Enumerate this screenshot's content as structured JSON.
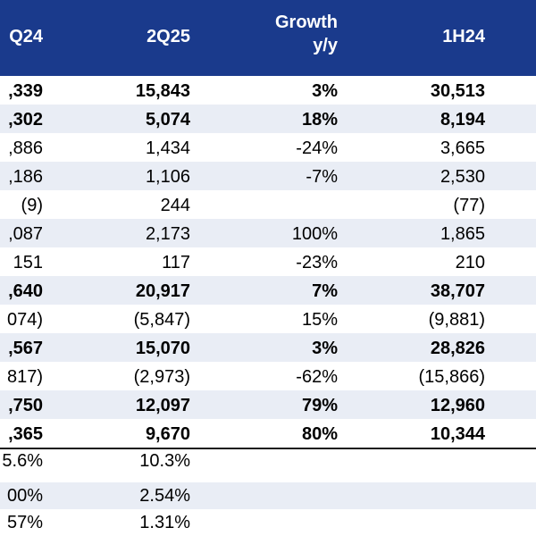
{
  "header": {
    "col1": "Q24",
    "col2": "2Q25",
    "col3_line1": "Growth",
    "col3_line2": "y/y",
    "col4": "1H24"
  },
  "rows": [
    {
      "c1": ",339",
      "c2": "15,843",
      "c3": "3%",
      "c4": "30,513",
      "bold": true
    },
    {
      "c1": ",302",
      "c2": "5,074",
      "c3": "18%",
      "c4": "8,194",
      "bold": true
    },
    {
      "c1": ",886",
      "c2": "1,434",
      "c3": "-24%",
      "c4": "3,665",
      "bold": false
    },
    {
      "c1": ",186",
      "c2": "1,106",
      "c3": "-7%",
      "c4": "2,530",
      "bold": false
    },
    {
      "c1": "(9)",
      "c2": "244",
      "c3": "",
      "c4": "(77)",
      "bold": false
    },
    {
      "c1": ",087",
      "c2": "2,173",
      "c3": "100%",
      "c4": "1,865",
      "bold": false
    },
    {
      "c1": "151",
      "c2": "117",
      "c3": "-23%",
      "c4": "210",
      "bold": false
    },
    {
      "c1": ",640",
      "c2": "20,917",
      "c3": "7%",
      "c4": "38,707",
      "bold": true
    },
    {
      "c1": "074)",
      "c2": "(5,847)",
      "c3": "15%",
      "c4": "(9,881)",
      "bold": false
    },
    {
      "c1": ",567",
      "c2": "15,070",
      "c3": "3%",
      "c4": "28,826",
      "bold": true
    },
    {
      "c1": "817)",
      "c2": "(2,973)",
      "c3": "-62%",
      "c4": "(15,866)",
      "bold": false
    },
    {
      "c1": ",750",
      "c2": "12,097",
      "c3": "79%",
      "c4": "12,960",
      "bold": true
    },
    {
      "c1": ",365",
      "c2": "9,670",
      "c3": "80%",
      "c4": "10,344",
      "bold": true
    }
  ],
  "ratios": [
    {
      "c1": "5.6%",
      "c2": "10.3%"
    },
    {
      "c1": "00%",
      "c2": "2.54%"
    },
    {
      "c1": "57%",
      "c2": "1.31%"
    }
  ]
}
